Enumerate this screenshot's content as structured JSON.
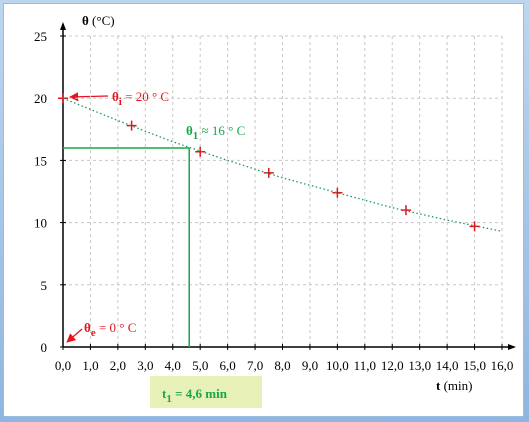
{
  "chart_data": {
    "type": "scatter",
    "y_label": {
      "symbol": "θ",
      "unit": " (°C)"
    },
    "x_label": {
      "symbol": "t",
      "unit": " (min)"
    },
    "xlim": [
      0,
      16
    ],
    "ylim": [
      0,
      25
    ],
    "xticks": [
      {
        "value": 0,
        "label": "0,0"
      },
      {
        "value": 1,
        "label": "1,0"
      },
      {
        "value": 2,
        "label": "2,0"
      },
      {
        "value": 3,
        "label": "3,0"
      },
      {
        "value": 4,
        "label": "4,0"
      },
      {
        "value": 5,
        "label": "5,0"
      },
      {
        "value": 6,
        "label": "6,0"
      },
      {
        "value": 7,
        "label": "7,0"
      },
      {
        "value": 8,
        "label": "8,0"
      },
      {
        "value": 9,
        "label": "9,0"
      },
      {
        "value": 10,
        "label": "10,0"
      },
      {
        "value": 11,
        "label": "11,0"
      },
      {
        "value": 12,
        "label": "12,0"
      },
      {
        "value": 13,
        "label": "13,0"
      },
      {
        "value": 14,
        "label": "14,0"
      },
      {
        "value": 15,
        "label": "15,0"
      },
      {
        "value": 16,
        "label": "16,0"
      }
    ],
    "yticks": [
      0,
      5,
      10,
      15,
      20,
      25
    ],
    "grid": true,
    "series": [
      {
        "type": "scatter",
        "color": "#e3141e",
        "x": [
          0,
          2.5,
          5,
          7.5,
          10,
          12.5,
          15
        ],
        "values": [
          20,
          17.8,
          15.7,
          14.0,
          12.4,
          11.0,
          9.7
        ]
      },
      {
        "type": "line",
        "style": "dotted",
        "color": "#1a9c5a",
        "x": [
          0,
          2,
          4,
          6,
          8,
          10,
          12,
          14,
          16
        ],
        "values": [
          20,
          18.2,
          16.5,
          15.0,
          13.6,
          12.4,
          11.2,
          10.2,
          9.3
        ]
      }
    ],
    "guide": {
      "x": 4.6,
      "y": 16,
      "color": "#1aa64a"
    },
    "annotations": [
      {
        "symbol": "θ",
        "sub": "i",
        "text": " = 20 ° C",
        "color": "#e3141e"
      },
      {
        "symbol": "θ",
        "sub": "1",
        "text": " ≈ 16 ° C",
        "color": "#1aa64a"
      },
      {
        "symbol": "θ",
        "sub": "e",
        "text": " = 0 ° C",
        "color": "#e3141e"
      },
      {
        "symbol": "t",
        "sub": "1",
        "text": " = 4,6 min",
        "color": "#1aa64a"
      }
    ]
  }
}
